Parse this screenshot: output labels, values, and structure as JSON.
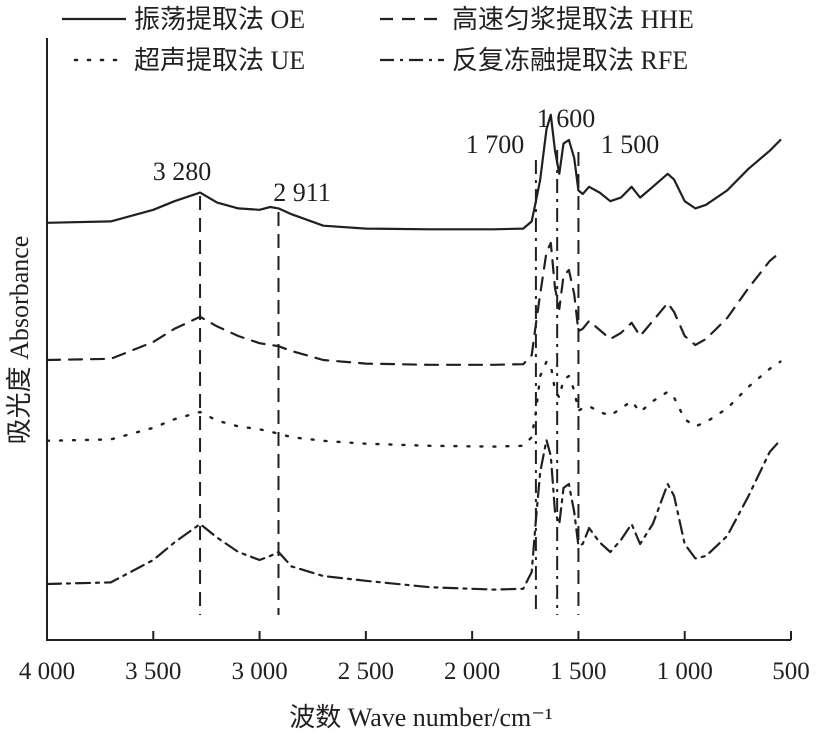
{
  "chart_data": {
    "type": "line",
    "title": "",
    "xlabel": "波数 Wave number/cm⁻¹",
    "ylabel": "吸光度  Absorbance",
    "x_reversed": true,
    "xlim": [
      4000,
      500
    ],
    "x_ticks": [
      4000,
      3500,
      3000,
      2500,
      2000,
      1500,
      1000,
      500
    ],
    "x_tick_labels": [
      "4 000",
      "3 500",
      "3 000",
      "2 500",
      "2 000",
      "1 500",
      "1 000",
      "500"
    ],
    "y_ticks_shown": false,
    "grid": false,
    "legend": {
      "placement": "top",
      "entries": [
        {
          "label": "振荡提取法 OE",
          "series": "OE"
        },
        {
          "label": "高速匀浆提取法 HHE",
          "series": "HHE"
        },
        {
          "label": "超声提取法 UE",
          "series": "UE"
        },
        {
          "label": "反复冻融提取法 RFE",
          "series": "RFE"
        }
      ]
    },
    "peaks": [
      {
        "x": 3280,
        "label": "3 280"
      },
      {
        "x": 2911,
        "label": "2 911"
      },
      {
        "x": 1700,
        "label": "1 700"
      },
      {
        "x": 1600,
        "label": "1 600"
      },
      {
        "x": 1500,
        "label": "1 500"
      }
    ],
    "series": [
      {
        "name": "OE",
        "style": "solid",
        "color": "#231f20",
        "points": [
          [
            4000,
            0.1
          ],
          [
            3700,
            0.12
          ],
          [
            3500,
            0.28
          ],
          [
            3400,
            0.4
          ],
          [
            3280,
            0.52
          ],
          [
            3200,
            0.38
          ],
          [
            3100,
            0.3
          ],
          [
            3000,
            0.28
          ],
          [
            2950,
            0.32
          ],
          [
            2911,
            0.3
          ],
          [
            2850,
            0.22
          ],
          [
            2700,
            0.06
          ],
          [
            2500,
            0.02
          ],
          [
            2200,
            0.01
          ],
          [
            1900,
            0.01
          ],
          [
            1760,
            0.02
          ],
          [
            1720,
            0.12
          ],
          [
            1700,
            0.4
          ],
          [
            1680,
            0.7
          ],
          [
            1650,
            1.4
          ],
          [
            1630,
            1.6
          ],
          [
            1610,
            1.1
          ],
          [
            1590,
            0.78
          ],
          [
            1570,
            1.2
          ],
          [
            1545,
            1.25
          ],
          [
            1520,
            1.0
          ],
          [
            1500,
            0.55
          ],
          [
            1480,
            0.5
          ],
          [
            1450,
            0.6
          ],
          [
            1400,
            0.52
          ],
          [
            1350,
            0.4
          ],
          [
            1300,
            0.45
          ],
          [
            1250,
            0.6
          ],
          [
            1210,
            0.45
          ],
          [
            1150,
            0.6
          ],
          [
            1080,
            0.78
          ],
          [
            1050,
            0.7
          ],
          [
            1000,
            0.4
          ],
          [
            950,
            0.3
          ],
          [
            900,
            0.35
          ],
          [
            800,
            0.55
          ],
          [
            700,
            0.85
          ],
          [
            600,
            1.1
          ],
          [
            550,
            1.25
          ]
        ]
      },
      {
        "name": "HHE",
        "style": "dashed",
        "color": "#231f20",
        "points": [
          [
            4000,
            0.1
          ],
          [
            3700,
            0.12
          ],
          [
            3500,
            0.4
          ],
          [
            3400,
            0.62
          ],
          [
            3280,
            0.82
          ],
          [
            3200,
            0.66
          ],
          [
            3100,
            0.5
          ],
          [
            3000,
            0.38
          ],
          [
            2911,
            0.33
          ],
          [
            2850,
            0.25
          ],
          [
            2700,
            0.1
          ],
          [
            2500,
            0.04
          ],
          [
            2200,
            0.02
          ],
          [
            1900,
            0.02
          ],
          [
            1760,
            0.03
          ],
          [
            1720,
            0.18
          ],
          [
            1700,
            0.7
          ],
          [
            1680,
            1.2
          ],
          [
            1650,
            1.9
          ],
          [
            1630,
            2.05
          ],
          [
            1610,
            1.3
          ],
          [
            1590,
            0.95
          ],
          [
            1570,
            1.5
          ],
          [
            1545,
            1.6
          ],
          [
            1520,
            1.2
          ],
          [
            1500,
            0.58
          ],
          [
            1480,
            0.62
          ],
          [
            1450,
            0.75
          ],
          [
            1400,
            0.6
          ],
          [
            1350,
            0.45
          ],
          [
            1300,
            0.55
          ],
          [
            1250,
            0.72
          ],
          [
            1210,
            0.5
          ],
          [
            1150,
            0.75
          ],
          [
            1080,
            1.05
          ],
          [
            1050,
            0.9
          ],
          [
            1000,
            0.5
          ],
          [
            950,
            0.35
          ],
          [
            900,
            0.45
          ],
          [
            800,
            0.8
          ],
          [
            700,
            1.3
          ],
          [
            600,
            1.75
          ],
          [
            550,
            1.9
          ]
        ]
      },
      {
        "name": "UE",
        "style": "dotted",
        "color": "#231f20",
        "points": [
          [
            4000,
            0.1
          ],
          [
            3700,
            0.12
          ],
          [
            3500,
            0.28
          ],
          [
            3400,
            0.4
          ],
          [
            3280,
            0.5
          ],
          [
            3200,
            0.38
          ],
          [
            3100,
            0.3
          ],
          [
            3000,
            0.26
          ],
          [
            2911,
            0.2
          ],
          [
            2850,
            0.15
          ],
          [
            2700,
            0.1
          ],
          [
            2500,
            0.06
          ],
          [
            2200,
            0.03
          ],
          [
            1900,
            0.02
          ],
          [
            1760,
            0.03
          ],
          [
            1720,
            0.15
          ],
          [
            1700,
            0.5
          ],
          [
            1680,
            1.0
          ],
          [
            1650,
            1.2
          ],
          [
            1630,
            1.15
          ],
          [
            1610,
            0.8
          ],
          [
            1590,
            0.7
          ],
          [
            1570,
            0.95
          ],
          [
            1545,
            1.0
          ],
          [
            1520,
            0.8
          ],
          [
            1500,
            0.52
          ],
          [
            1480,
            0.55
          ],
          [
            1450,
            0.58
          ],
          [
            1400,
            0.5
          ],
          [
            1350,
            0.45
          ],
          [
            1300,
            0.55
          ],
          [
            1250,
            0.65
          ],
          [
            1210,
            0.5
          ],
          [
            1150,
            0.65
          ],
          [
            1080,
            0.78
          ],
          [
            1050,
            0.7
          ],
          [
            1000,
            0.4
          ],
          [
            950,
            0.3
          ],
          [
            900,
            0.36
          ],
          [
            800,
            0.55
          ],
          [
            700,
            0.85
          ],
          [
            600,
            1.1
          ],
          [
            550,
            1.2
          ]
        ]
      },
      {
        "name": "RFE",
        "style": "dashdot",
        "color": "#231f20",
        "points": [
          [
            4000,
            0.1
          ],
          [
            3700,
            0.12
          ],
          [
            3500,
            0.4
          ],
          [
            3400,
            0.62
          ],
          [
            3280,
            0.85
          ],
          [
            3200,
            0.68
          ],
          [
            3100,
            0.5
          ],
          [
            3000,
            0.4
          ],
          [
            2950,
            0.45
          ],
          [
            2911,
            0.5
          ],
          [
            2850,
            0.32
          ],
          [
            2700,
            0.2
          ],
          [
            2500,
            0.14
          ],
          [
            2200,
            0.06
          ],
          [
            1900,
            0.03
          ],
          [
            1760,
            0.04
          ],
          [
            1720,
            0.25
          ],
          [
            1700,
            0.9
          ],
          [
            1680,
            1.5
          ],
          [
            1650,
            1.9
          ],
          [
            1630,
            1.7
          ],
          [
            1610,
            1.0
          ],
          [
            1590,
            0.85
          ],
          [
            1570,
            1.3
          ],
          [
            1545,
            1.35
          ],
          [
            1520,
            1.0
          ],
          [
            1500,
            0.58
          ],
          [
            1480,
            0.6
          ],
          [
            1450,
            0.8
          ],
          [
            1400,
            0.62
          ],
          [
            1350,
            0.5
          ],
          [
            1300,
            0.65
          ],
          [
            1250,
            0.85
          ],
          [
            1210,
            0.6
          ],
          [
            1150,
            0.85
          ],
          [
            1080,
            1.35
          ],
          [
            1050,
            1.2
          ],
          [
            1000,
            0.6
          ],
          [
            950,
            0.42
          ],
          [
            900,
            0.45
          ],
          [
            800,
            0.7
          ],
          [
            700,
            1.2
          ],
          [
            600,
            1.75
          ],
          [
            550,
            1.9
          ]
        ]
      }
    ]
  }
}
